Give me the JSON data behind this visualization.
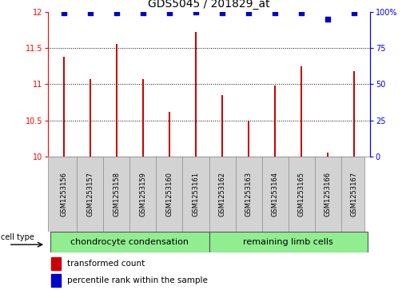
{
  "title": "GDS5045 / 201829_at",
  "categories": [
    "GSM1253156",
    "GSM1253157",
    "GSM1253158",
    "GSM1253159",
    "GSM1253160",
    "GSM1253161",
    "GSM1253162",
    "GSM1253163",
    "GSM1253164",
    "GSM1253165",
    "GSM1253166",
    "GSM1253167"
  ],
  "bar_values": [
    11.38,
    11.07,
    11.55,
    11.07,
    10.62,
    11.72,
    10.85,
    10.5,
    10.98,
    11.25,
    10.05,
    11.18
  ],
  "percentile_values": [
    99,
    99,
    99,
    99,
    99,
    100,
    99,
    99,
    99,
    99,
    95,
    99
  ],
  "bar_color": "#cc0000",
  "dot_color": "#0000cc",
  "ylim_left": [
    10,
    12
  ],
  "ylim_right": [
    0,
    100
  ],
  "yticks_left": [
    10,
    10.5,
    11,
    11.5,
    12
  ],
  "ytick_labels_left": [
    "10",
    "10.5",
    "11",
    "11.5",
    "12"
  ],
  "yticks_right": [
    0,
    25,
    50,
    75,
    100
  ],
  "ytick_labels_right": [
    "0",
    "25",
    "50",
    "75",
    "100%"
  ],
  "group1_label": "chondrocyte condensation",
  "group2_label": "remaining limb cells",
  "group1_count": 6,
  "group2_count": 6,
  "cell_type_label": "cell type",
  "legend1_label": "transformed count",
  "legend2_label": "percentile rank within the sample",
  "group1_color": "#90ee90",
  "group2_color": "#90ee90",
  "bar_width": 0.08,
  "plot_bg_color": "#ffffff",
  "tick_bg_color": "#d3d3d3",
  "dotted_line_color": "#000000",
  "title_fontsize": 10,
  "tick_fontsize": 7,
  "label_fontsize": 8,
  "legend_fontsize": 7.5
}
